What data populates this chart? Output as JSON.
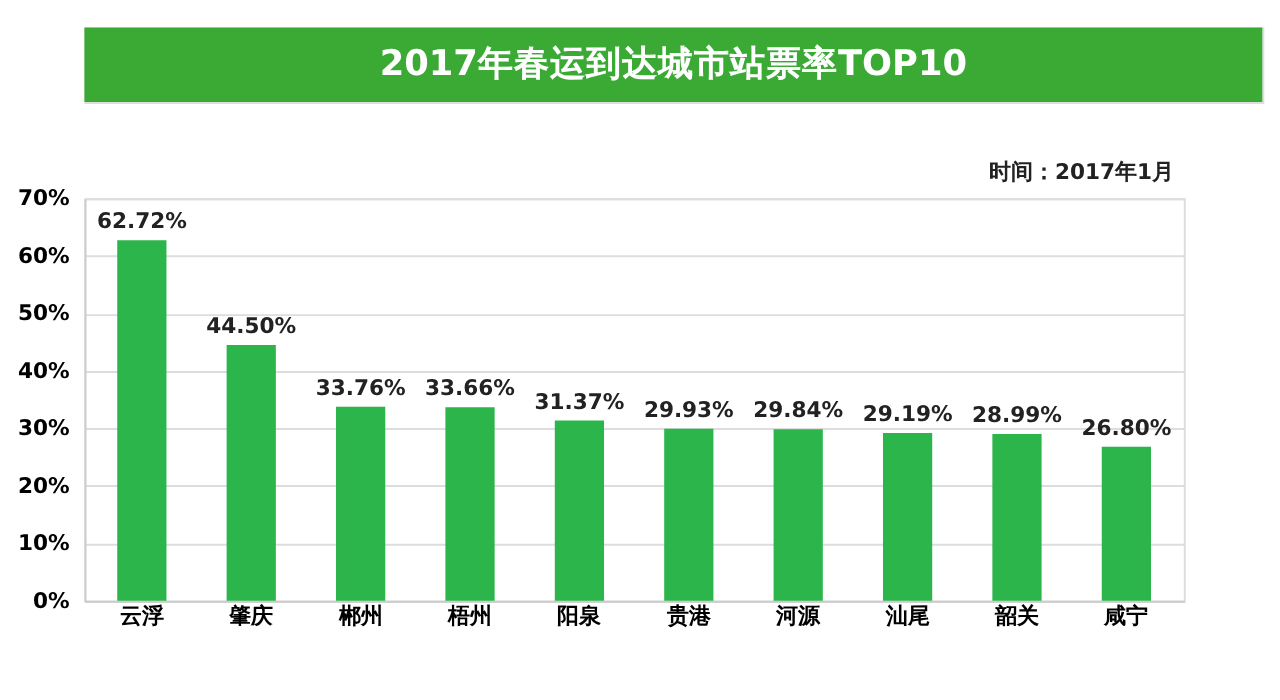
{
  "chart_data": {
    "type": "bar",
    "title": "2017年春运到达城市站票率TOP10",
    "annotations": [
      "时间：2017年1月"
    ],
    "categories": [
      "云浮",
      "肇庆",
      "郴州",
      "梧州",
      "阳泉",
      "贵港",
      "河源",
      "汕尾",
      "韶关",
      "咸宁"
    ],
    "values": [
      62.72,
      44.5,
      33.76,
      33.66,
      31.37,
      29.93,
      29.84,
      29.19,
      28.99,
      26.8
    ],
    "value_labels": [
      "62.72%",
      "44.50%",
      "33.76%",
      "33.66%",
      "31.37%",
      "29.93%",
      "29.84%",
      "29.19%",
      "28.99%",
      "26.80%"
    ],
    "color": "#2bb54a",
    "ylim": [
      0,
      70
    ],
    "yticks": [
      {
        "value": 0,
        "label": "0%"
      },
      {
        "value": 10,
        "label": "10%"
      },
      {
        "value": 20,
        "label": "20%"
      },
      {
        "value": 30,
        "label": "30%"
      },
      {
        "value": 40,
        "label": "40%"
      },
      {
        "value": 50,
        "label": "50%"
      },
      {
        "value": 60,
        "label": "60%"
      },
      {
        "value": 70,
        "label": "70%"
      }
    ],
    "grid": "y"
  }
}
